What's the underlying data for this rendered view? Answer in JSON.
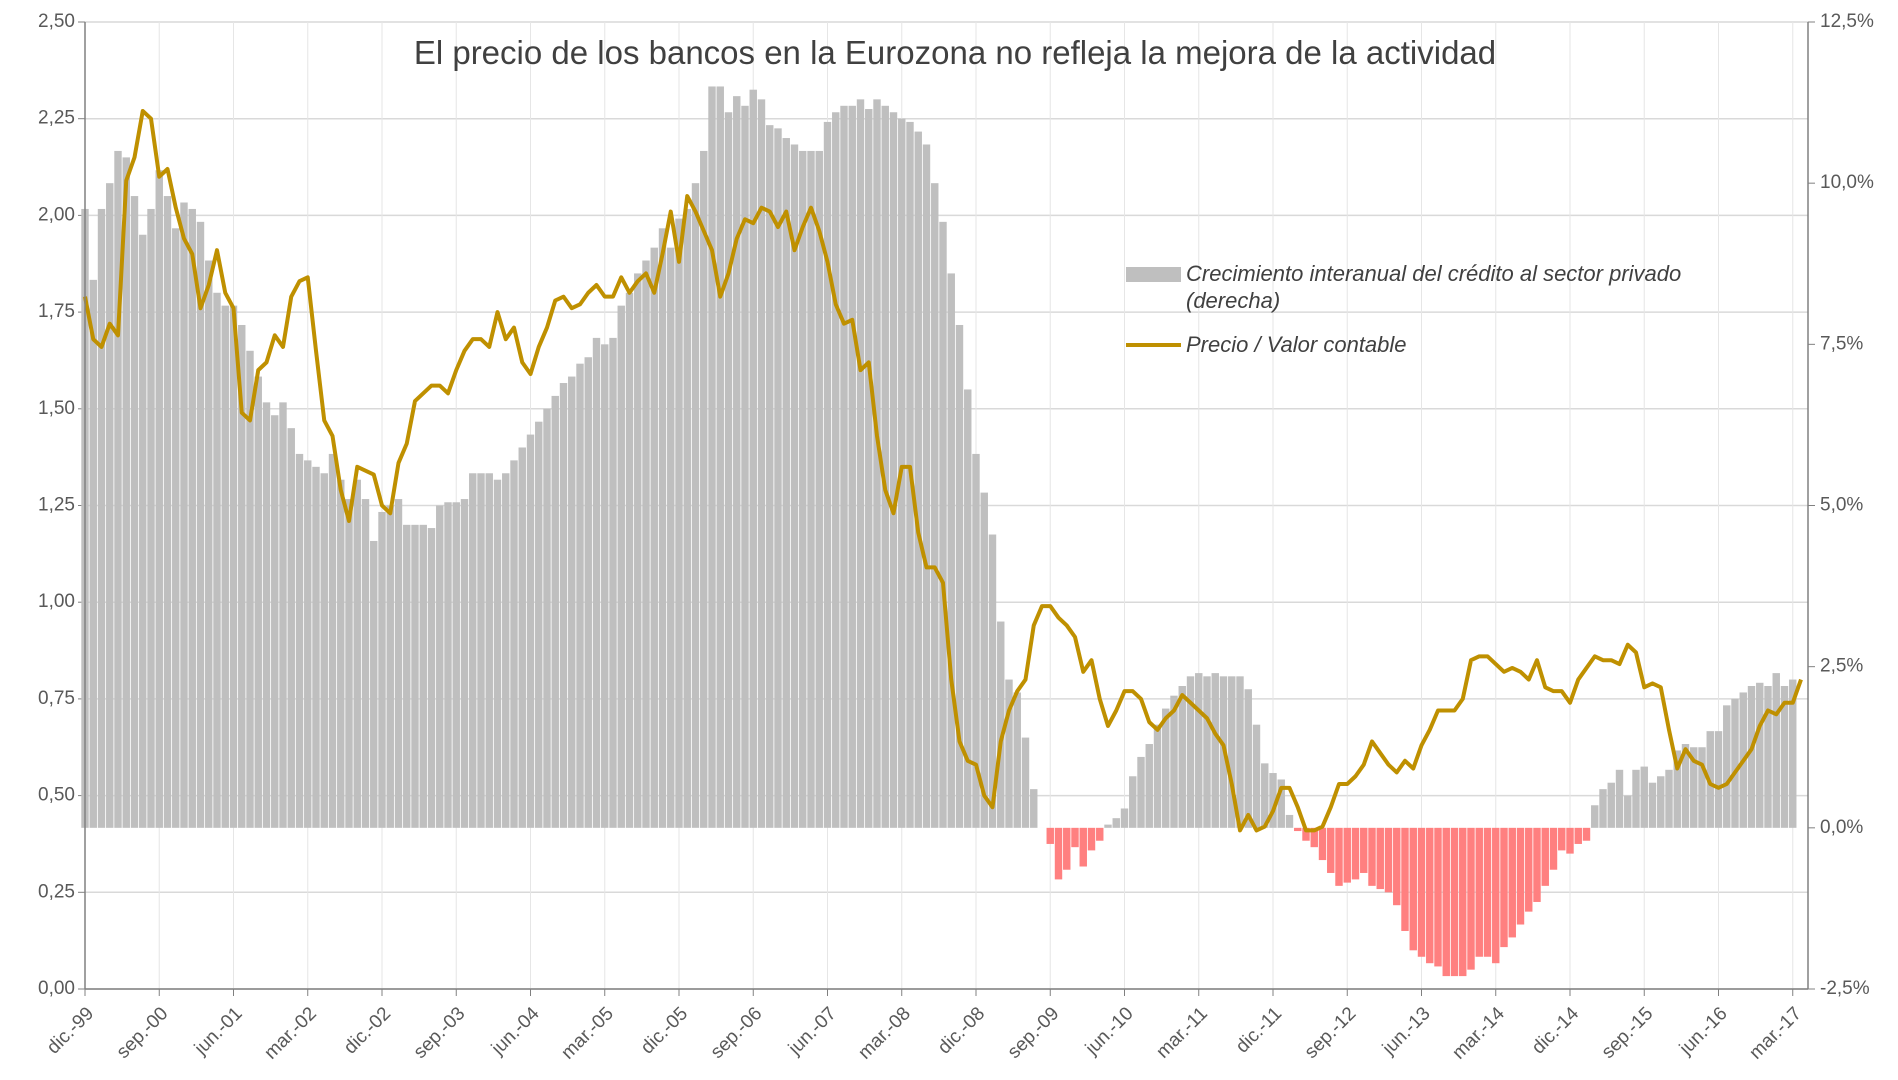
{
  "chart_data": {
    "type": "bar_line",
    "title": "El precio de los bancos en la Eurozona no refleja la mejora de la actividad",
    "categories": [
      "dic.-99",
      null,
      null,
      null,
      null,
      null,
      null,
      null,
      null,
      "sep.-00",
      null,
      null,
      null,
      null,
      null,
      null,
      null,
      null,
      "jun.-01",
      null,
      null,
      null,
      null,
      null,
      null,
      null,
      null,
      "mar.-02",
      null,
      null,
      null,
      null,
      null,
      null,
      null,
      null,
      "dic.-02",
      null,
      null,
      null,
      null,
      null,
      null,
      null,
      null,
      "sep.-03",
      null,
      null,
      null,
      null,
      null,
      null,
      null,
      null,
      "jun.-04",
      null,
      null,
      null,
      null,
      null,
      null,
      null,
      null,
      "mar.-05",
      null,
      null,
      null,
      null,
      null,
      null,
      null,
      null,
      "dic.-05",
      null,
      null,
      null,
      null,
      null,
      null,
      null,
      null,
      "sep.-06",
      null,
      null,
      null,
      null,
      null,
      null,
      null,
      null,
      "jun.-07",
      null,
      null,
      null,
      null,
      null,
      null,
      null,
      null,
      "mar.-08",
      null,
      null,
      null,
      null,
      null,
      null,
      null,
      null,
      "dic.-08",
      null,
      null,
      null,
      null,
      null,
      null,
      null,
      null,
      "sep.-09",
      null,
      null,
      null,
      null,
      null,
      null,
      null,
      null,
      "jun.-10",
      null,
      null,
      null,
      null,
      null,
      null,
      null,
      null,
      "mar.-11",
      null,
      null,
      null,
      null,
      null,
      null,
      null,
      null,
      "dic.-11",
      null,
      null,
      null,
      null,
      null,
      null,
      null,
      null,
      "sep.-12",
      null,
      null,
      null,
      null,
      null,
      null,
      null,
      null,
      "jun.-13",
      null,
      null,
      null,
      null,
      null,
      null,
      null,
      null,
      "mar.-14",
      null,
      null,
      null,
      null,
      null,
      null,
      null,
      null,
      "dic.-14",
      null,
      null,
      null,
      null,
      null,
      null,
      null,
      null,
      "sep.-15",
      null,
      null,
      null,
      null,
      null,
      null,
      null,
      null,
      "jun.-16",
      null,
      null,
      null,
      null,
      null,
      null,
      null,
      null,
      "mar.-17",
      null
    ],
    "series": [
      {
        "name": "Crecimiento interanual del crédito al sector privado (derecha)",
        "type": "bar",
        "axis": "y2",
        "color": "#bfbfbf",
        "negative_color": "#ff8080",
        "values": [
          9.6,
          8.5,
          9.6,
          10.0,
          10.5,
          10.4,
          9.8,
          9.2,
          9.6,
          10.2,
          9.8,
          9.3,
          9.7,
          9.6,
          9.4,
          8.8,
          8.3,
          8.1,
          8.1,
          7.8,
          7.4,
          7.0,
          6.6,
          6.4,
          6.6,
          6.2,
          5.8,
          5.7,
          5.6,
          5.5,
          5.8,
          5.4,
          5.1,
          5.4,
          5.1,
          4.45,
          4.9,
          5.0,
          5.1,
          4.7,
          4.7,
          4.7,
          4.65,
          5.0,
          5.05,
          5.05,
          5.1,
          5.5,
          5.5,
          5.5,
          5.4,
          5.5,
          5.7,
          5.9,
          6.1,
          6.3,
          6.5,
          6.7,
          6.9,
          7.0,
          7.2,
          7.3,
          7.6,
          7.5,
          7.6,
          8.1,
          8.3,
          8.6,
          8.8,
          9.0,
          9.3,
          9.0,
          9.45,
          9.6,
          10.0,
          10.5,
          11.5,
          11.5,
          11.1,
          11.35,
          11.2,
          11.45,
          11.3,
          10.9,
          10.85,
          10.7,
          10.6,
          10.5,
          10.5,
          10.5,
          10.95,
          11.1,
          11.2,
          11.2,
          11.3,
          11.15,
          11.3,
          11.2,
          11.1,
          11.0,
          10.95,
          10.8,
          10.6,
          10.0,
          9.4,
          8.6,
          7.8,
          6.8,
          5.8,
          5.2,
          4.55,
          3.2,
          2.3,
          2.1,
          1.4,
          0.6,
          0,
          -0.25,
          -0.8,
          -0.65,
          -0.3,
          -0.6,
          -0.35,
          -0.2,
          0.05,
          0.15,
          0.3,
          0.8,
          1.1,
          1.3,
          1.6,
          1.85,
          2.05,
          2.2,
          2.35,
          2.4,
          2.35,
          2.4,
          2.35,
          2.35,
          2.35,
          2.15,
          1.6,
          1.0,
          0.85,
          0.75,
          0.2,
          -0.05,
          -0.2,
          -0.3,
          -0.5,
          -0.7,
          -0.9,
          -0.85,
          -0.8,
          -0.7,
          -0.9,
          -0.95,
          -1.0,
          -1.2,
          -1.6,
          -1.9,
          -2.0,
          -2.1,
          -2.15,
          -2.3,
          -2.3,
          -2.3,
          -2.2,
          -2.0,
          -2.0,
          -2.1,
          -1.85,
          -1.7,
          -1.5,
          -1.3,
          -1.15,
          -0.9,
          -0.65,
          -0.35,
          -0.4,
          -0.25,
          -0.2,
          0.35,
          0.6,
          0.7,
          0.9,
          0.5,
          0.9,
          0.95,
          0.7,
          0.8,
          0.9,
          1.2,
          1.3,
          1.25,
          1.25,
          1.5,
          1.5,
          1.9,
          2.0,
          2.1,
          2.2,
          2.25,
          2.2,
          2.4,
          2.2,
          2.3,
          null
        ]
      },
      {
        "name": "Precio / Valor contable",
        "type": "line",
        "axis": "y",
        "color": "#bf9000",
        "values": [
          1.79,
          1.68,
          1.66,
          1.72,
          1.69,
          2.09,
          2.15,
          2.27,
          2.25,
          2.1,
          2.12,
          2.02,
          1.94,
          1.9,
          1.76,
          1.82,
          1.91,
          1.8,
          1.76,
          1.49,
          1.47,
          1.6,
          1.62,
          1.69,
          1.66,
          1.79,
          1.83,
          1.84,
          1.65,
          1.47,
          1.43,
          1.29,
          1.21,
          1.35,
          1.34,
          1.33,
          1.25,
          1.23,
          1.36,
          1.41,
          1.52,
          1.54,
          1.56,
          1.56,
          1.54,
          1.6,
          1.65,
          1.68,
          1.68,
          1.66,
          1.75,
          1.68,
          1.71,
          1.62,
          1.59,
          1.66,
          1.71,
          1.78,
          1.79,
          1.76,
          1.77,
          1.8,
          1.82,
          1.79,
          1.79,
          1.84,
          1.8,
          1.83,
          1.85,
          1.8,
          1.9,
          2.01,
          1.88,
          2.05,
          2.01,
          1.96,
          1.91,
          1.79,
          1.85,
          1.94,
          1.99,
          1.98,
          2.02,
          2.01,
          1.97,
          2.01,
          1.91,
          1.97,
          2.02,
          1.96,
          1.88,
          1.77,
          1.72,
          1.73,
          1.6,
          1.62,
          1.43,
          1.29,
          1.23,
          1.35,
          1.35,
          1.18,
          1.09,
          1.09,
          1.05,
          0.8,
          0.64,
          0.59,
          0.58,
          0.5,
          0.47,
          0.64,
          0.72,
          0.77,
          0.8,
          0.94,
          0.99,
          0.99,
          0.96,
          0.94,
          0.91,
          0.82,
          0.85,
          0.75,
          0.68,
          0.72,
          0.77,
          0.77,
          0.75,
          0.69,
          0.67,
          0.7,
          0.72,
          0.76,
          0.74,
          0.72,
          0.7,
          0.66,
          0.63,
          0.53,
          0.41,
          0.45,
          0.41,
          0.42,
          0.46,
          0.52,
          0.52,
          0.47,
          0.41,
          0.41,
          0.42,
          0.47,
          0.53,
          0.53,
          0.55,
          0.58,
          0.64,
          0.61,
          0.58,
          0.56,
          0.59,
          0.57,
          0.63,
          0.67,
          0.72,
          0.72,
          0.72,
          0.75,
          0.85,
          0.86,
          0.86,
          0.84,
          0.82,
          0.83,
          0.82,
          0.8,
          0.85,
          0.78,
          0.77,
          0.77,
          0.74,
          0.8,
          0.83,
          0.86,
          0.85,
          0.85,
          0.84,
          0.89,
          0.87,
          0.78,
          0.79,
          0.78,
          0.67,
          0.57,
          0.62,
          0.59,
          0.58,
          0.53,
          0.52,
          0.53,
          0.56,
          0.59,
          0.62,
          0.68,
          0.72,
          0.71,
          0.74,
          0.74,
          0.8
        ]
      }
    ],
    "ylim": [
      0,
      2.5
    ],
    "yticks": [
      {
        "value": 0,
        "label": "0,00"
      },
      {
        "value": 0.25,
        "label": "0,25"
      },
      {
        "value": 0.5,
        "label": "0,50"
      },
      {
        "value": 0.75,
        "label": "0,75"
      },
      {
        "value": 1,
        "label": "1,00"
      },
      {
        "value": 1.25,
        "label": "1,25"
      },
      {
        "value": 1.5,
        "label": "1,50"
      },
      {
        "value": 1.75,
        "label": "1,75"
      },
      {
        "value": 2,
        "label": "2,00"
      },
      {
        "value": 2.25,
        "label": "2,25"
      },
      {
        "value": 2.5,
        "label": "2,50"
      }
    ],
    "y2lim": [
      -2.5,
      12.5
    ],
    "y2ticks": [
      {
        "value": -2.5,
        "label": "-2,5%"
      },
      {
        "value": 0,
        "label": "0,0%"
      },
      {
        "value": 2.5,
        "label": "2,5%"
      },
      {
        "value": 5,
        "label": "5,0%"
      },
      {
        "value": 7.5,
        "label": "7,5%"
      },
      {
        "value": 10,
        "label": "10,0%"
      },
      {
        "value": 12.5,
        "label": "12,5%"
      }
    ],
    "grid": true
  }
}
